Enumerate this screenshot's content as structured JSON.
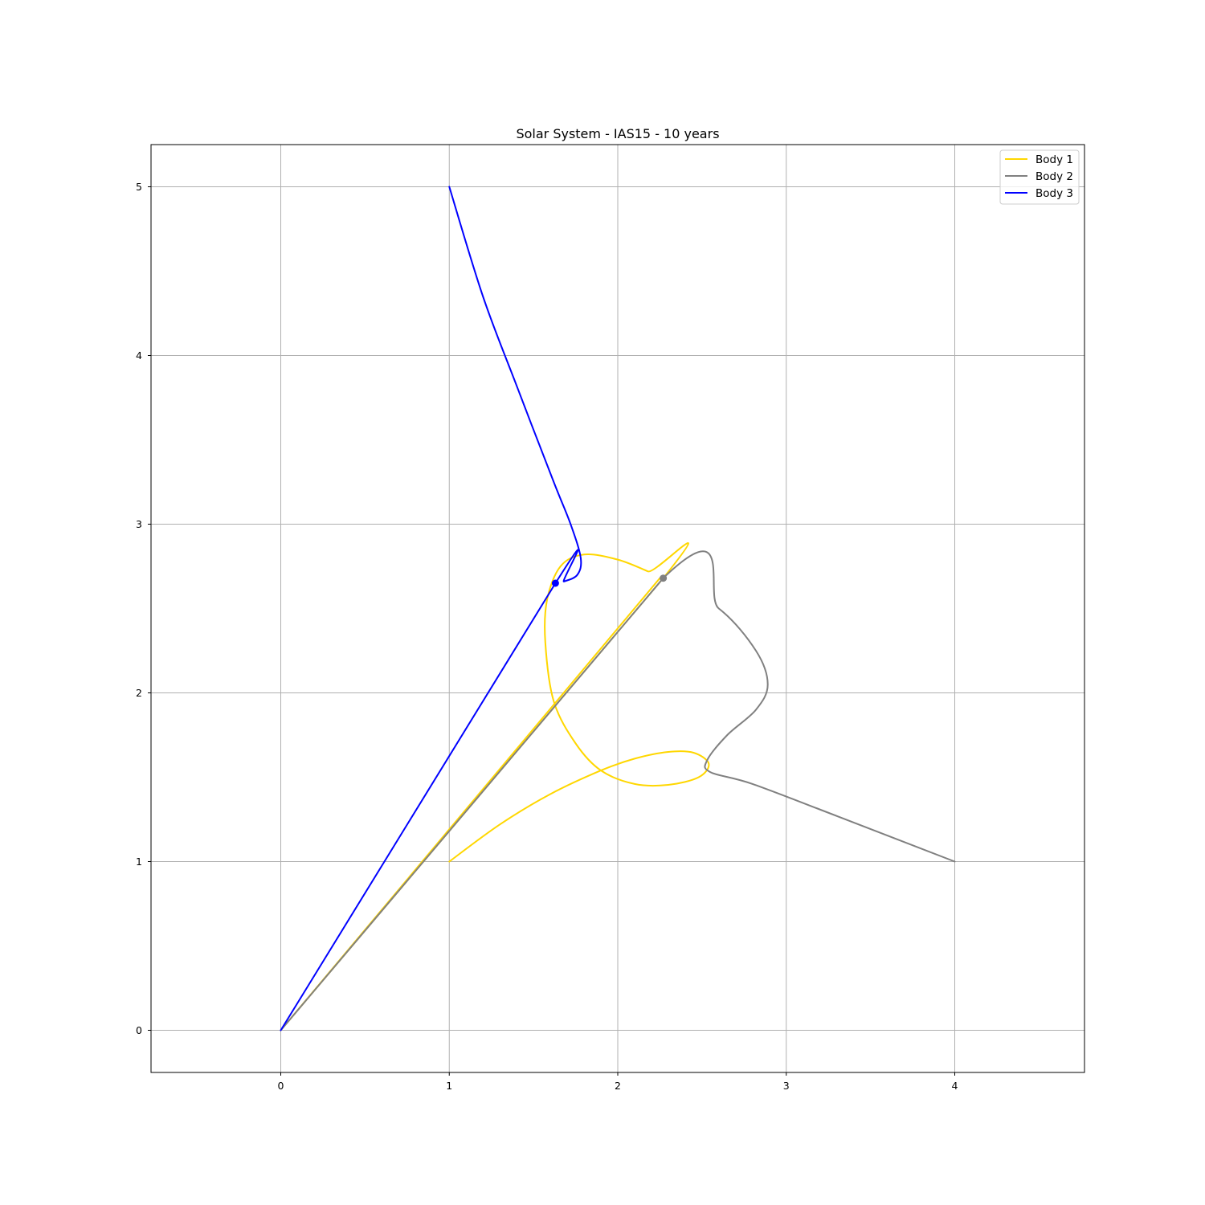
{
  "chart_data": {
    "type": "line",
    "title": "Solar System - IAS15 - 10 years",
    "xlabel": "",
    "ylabel": "",
    "xlim": [
      -0.77,
      4.77
    ],
    "ylim": [
      -0.25,
      5.25
    ],
    "x_ticks": [
      0,
      1,
      2,
      3,
      4
    ],
    "y_ticks": [
      0,
      1,
      2,
      3,
      4,
      5
    ],
    "grid": true,
    "legend": "top-right",
    "series": [
      {
        "name": "Body 1",
        "color": "#ffd700",
        "points": [
          [
            1.0,
            1.0
          ],
          [
            1.3,
            1.22
          ],
          [
            1.6,
            1.4
          ],
          [
            1.9,
            1.54
          ],
          [
            2.1,
            1.61
          ],
          [
            2.3,
            1.65
          ],
          [
            2.45,
            1.645
          ],
          [
            2.54,
            1.58
          ],
          [
            2.48,
            1.5
          ],
          [
            2.3,
            1.455
          ],
          [
            2.1,
            1.46
          ],
          [
            1.9,
            1.54
          ],
          [
            1.75,
            1.7
          ],
          [
            1.62,
            1.95
          ],
          [
            1.57,
            2.3
          ],
          [
            1.58,
            2.55
          ],
          [
            1.66,
            2.75
          ],
          [
            1.8,
            2.82
          ],
          [
            2.0,
            2.79
          ],
          [
            2.18,
            2.72
          ],
          [
            2.27,
            2.68
          ],
          [
            0.0,
            0.0
          ],
          [
            2.25,
            2.68
          ]
        ],
        "end_marker": false
      },
      {
        "name": "Body 2",
        "color": "#808080",
        "points": [
          [
            4.0,
            1.0
          ],
          [
            3.3,
            1.27
          ],
          [
            2.8,
            1.46
          ],
          [
            2.55,
            1.53
          ],
          [
            2.53,
            1.6
          ],
          [
            2.65,
            1.75
          ],
          [
            2.82,
            1.9
          ],
          [
            2.89,
            2.05
          ],
          [
            2.82,
            2.25
          ],
          [
            2.6,
            2.5
          ],
          [
            2.27,
            2.68
          ],
          [
            0.0,
            0.0
          ],
          [
            2.27,
            2.68
          ]
        ],
        "end_marker": [
          2.27,
          2.68
        ]
      },
      {
        "name": "Body 3",
        "color": "#0000ff",
        "points": [
          [
            1.0,
            5.0
          ],
          [
            1.2,
            4.35
          ],
          [
            1.4,
            3.82
          ],
          [
            1.62,
            3.25
          ],
          [
            1.72,
            3.0
          ],
          [
            1.78,
            2.8
          ],
          [
            1.76,
            2.7
          ],
          [
            1.68,
            2.66
          ],
          [
            1.63,
            2.65
          ],
          [
            0.0,
            0.0
          ],
          [
            1.63,
            2.65
          ]
        ],
        "end_marker": [
          1.63,
          2.65
        ]
      }
    ]
  }
}
